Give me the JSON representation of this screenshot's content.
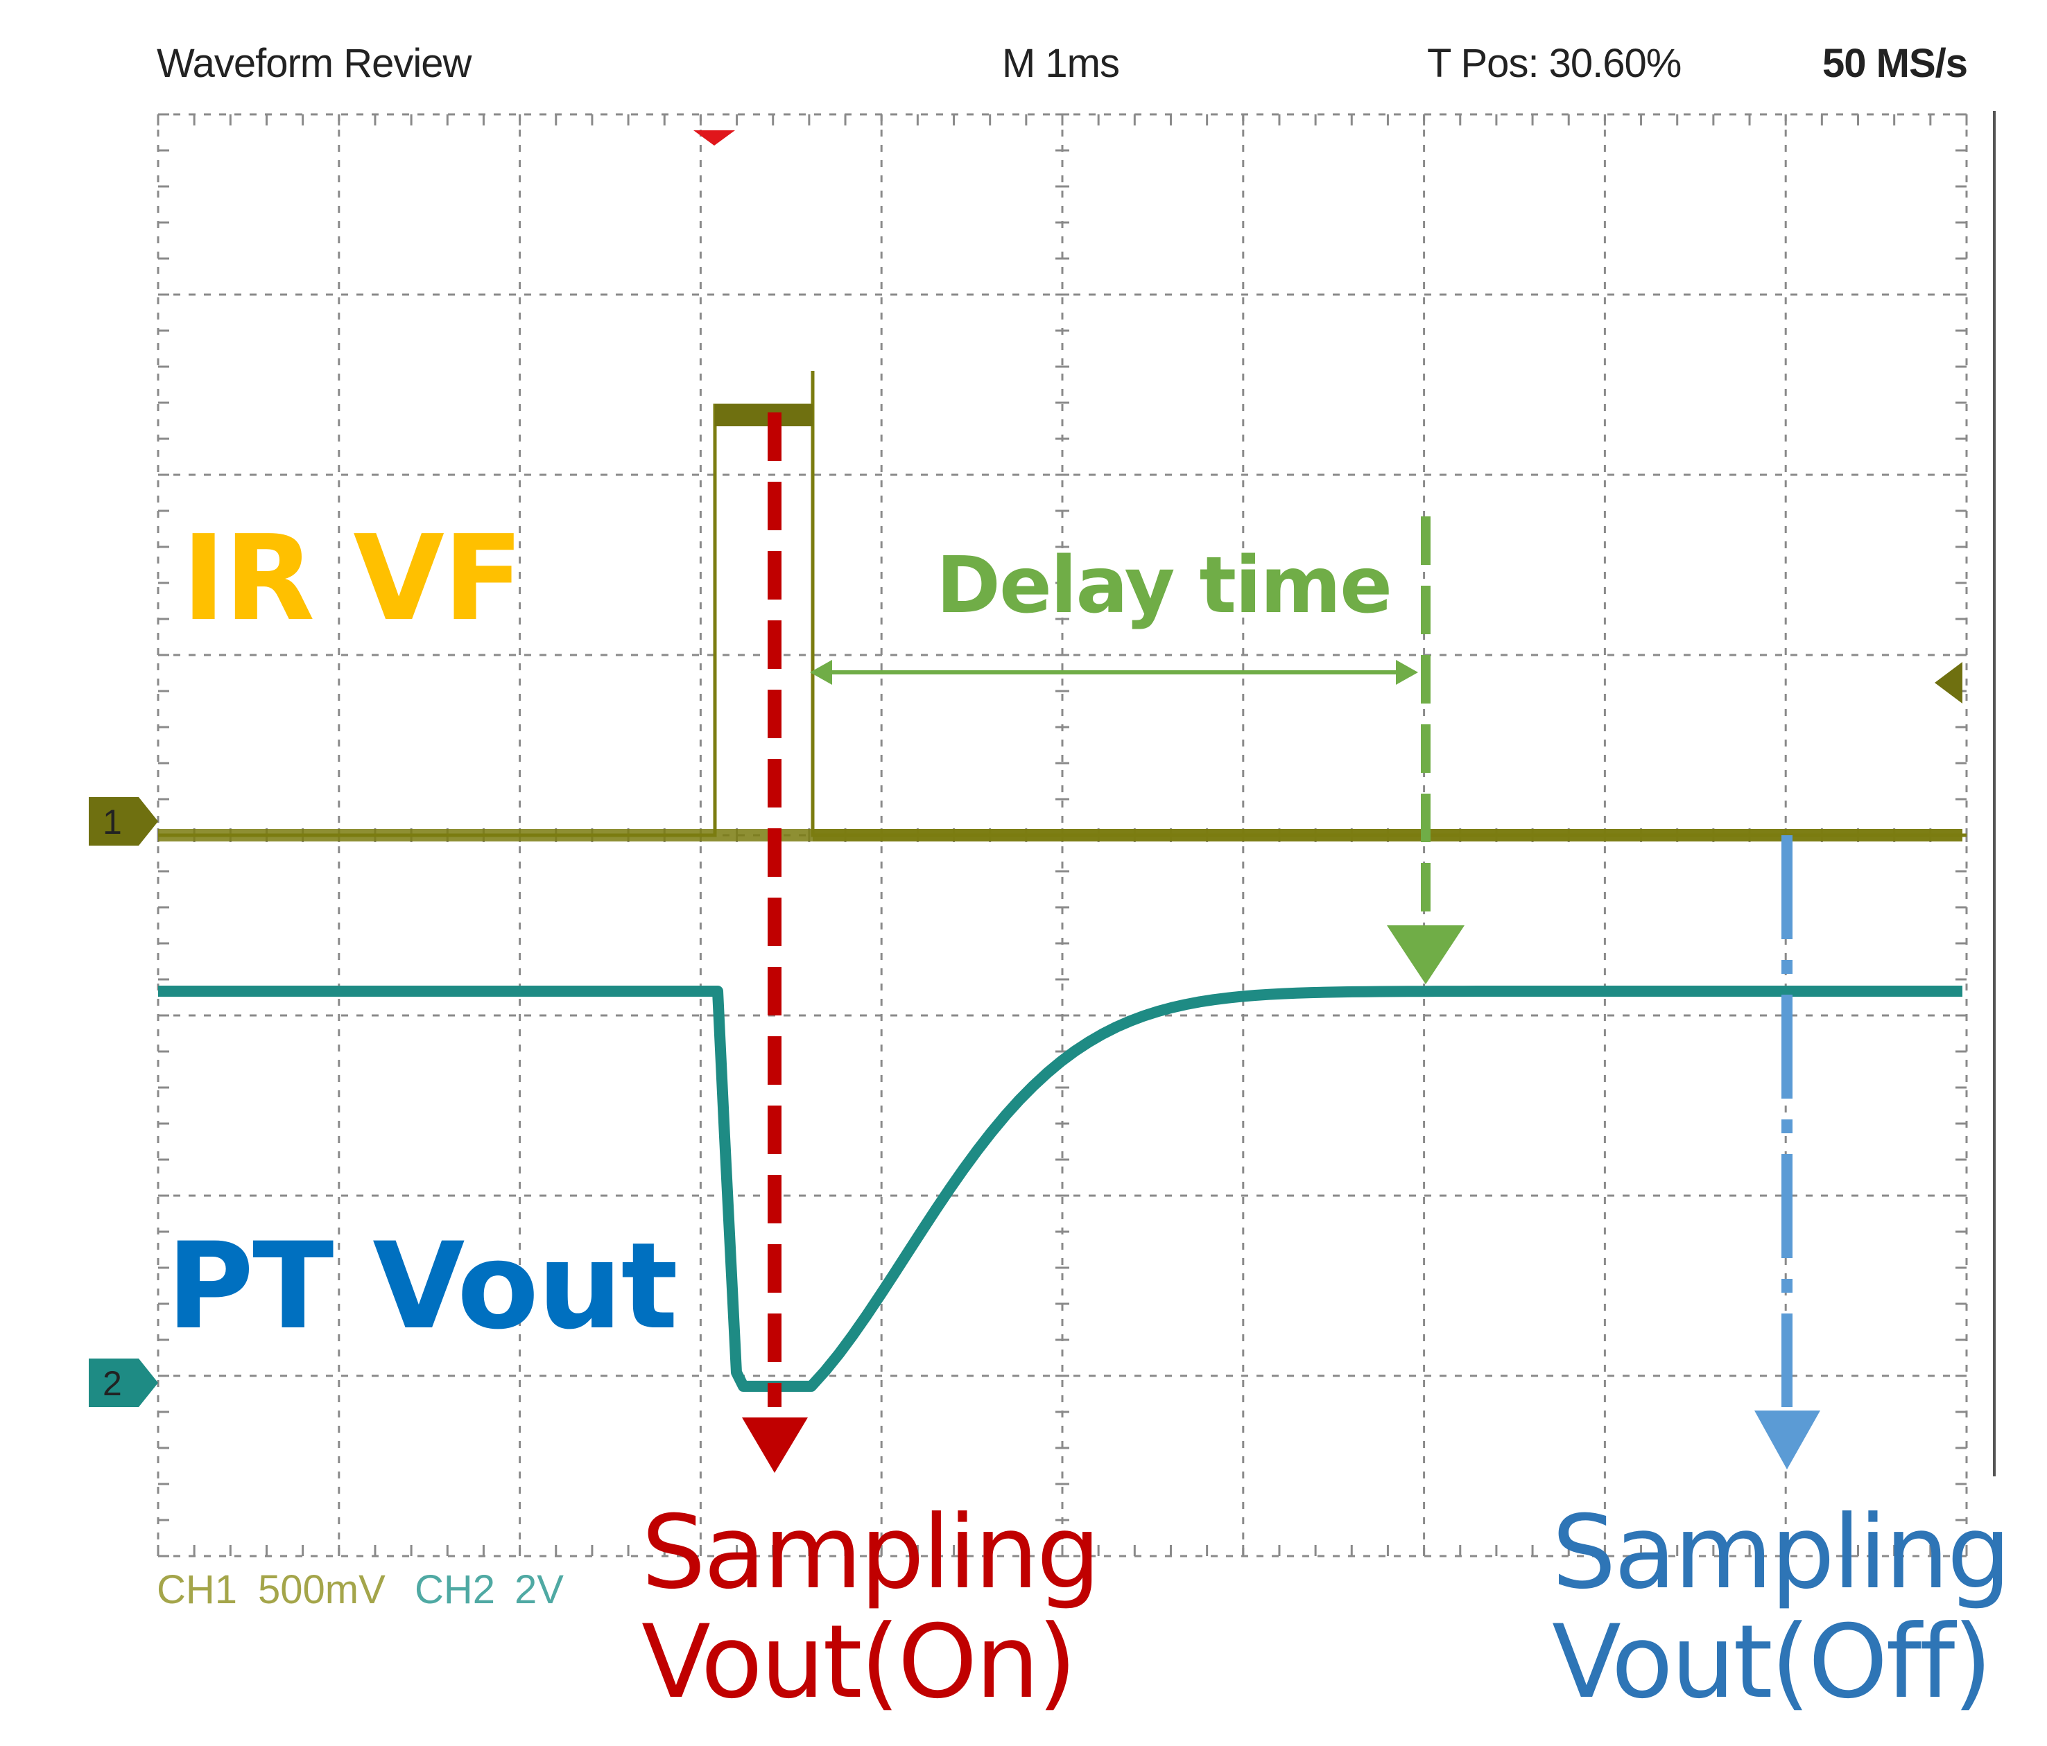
{
  "header": {
    "title": "Waveform Review",
    "timebase": "M 1ms",
    "trigger_position": "T Pos: 30.60%",
    "sample_rate": "50 MS/s"
  },
  "channels": [
    {
      "marker": "1",
      "scale_name": "CH1",
      "scale_value": "500mV",
      "color": "#7b7c10"
    },
    {
      "marker": "2",
      "scale_name": "CH2",
      "scale_value": "2V",
      "color": "#1e8b84"
    }
  ],
  "annotations": {
    "ir_vf": {
      "text": "IR VF",
      "color": "#ffc000"
    },
    "pt_vout": {
      "text": "PT Vout",
      "color": "#0070c0"
    },
    "delay_time": {
      "text": "Delay time",
      "color": "#70ad47"
    },
    "sampling_on": {
      "line1": "Sampling",
      "line2": "Vout(On)",
      "color": "#c00000"
    },
    "sampling_off": {
      "line1": "Sampling",
      "line2": "Vout(Off)",
      "color": "#2e75b6"
    }
  },
  "colors": {
    "grid": "#8a8a8a",
    "trigger_marker": "#e0161b",
    "sampling_off_line": "#5b9bd5"
  }
}
